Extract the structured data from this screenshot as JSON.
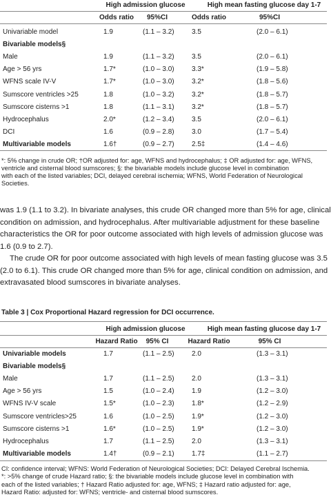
{
  "table2": {
    "group_headers": [
      "High admission glucose",
      "High mean fasting glucose day 1-7"
    ],
    "sub_headers": [
      "Odds ratio",
      "95%CI",
      "Odds ratio",
      "95%CI"
    ],
    "rows": [
      [
        "Univariable model",
        "1.9",
        "(1.1 – 3.2)",
        "3.5",
        "(2.0 – 6.1)"
      ],
      [
        "Bivariable models§"
      ],
      [
        "Male",
        "1.9",
        "(1.1 – 3.2)",
        "3.5",
        "(2.0 – 6.1)"
      ],
      [
        "Age > 56 yrs",
        "1.7*",
        "(1.0 – 3.0)",
        "3.3*",
        "(1.9 – 5.8)"
      ],
      [
        "WFNS scale IV-V",
        "1.7*",
        "(1.0 – 3.0)",
        "3.2*",
        "(1.8 – 5.6)"
      ],
      [
        "Sumscore ventricles >25",
        "1.8",
        "(1.0 – 3.2)",
        "3.2*",
        "(1.8 – 5.7)"
      ],
      [
        "Sumscore cisterns >1",
        "1.8",
        "(1.1 – 3.1)",
        "3.2*",
        "(1.8 – 5.7)"
      ],
      [
        "Hydrocephalus",
        "2.0*",
        "(1.2 – 3.4)",
        "3.5",
        "(2.0 – 6.1)"
      ],
      [
        "DCI",
        "1.6",
        "(0.9 – 2.8)",
        "3.0",
        "(1.7 – 5.4)"
      ],
      [
        "Multivariable models",
        "1.6†",
        "(0.9 – 2.7)",
        "2.5‡",
        "(1.4 – 4.6)"
      ]
    ],
    "footnote": [
      "*: 5% change in crude OR; †OR adjusted for: age, WFNS and hydrocephalus; ‡ OR adjusted for: age, WFNS,",
      "ventricle and cisternal blood sumscores; §: the bivariable models include glucose level in combination",
      "with each of the listed variables; DCI, delayed cerebral ischemia; WFNS, World Federation of Neurological",
      "Societies."
    ]
  },
  "body": [
    "was 1.9 (1.1 to 3.2). In bivariate analyses, this crude OR changed more than 5% for age, clinical",
    "condition on admission, and hydrocephalus. After multivariable adjustment for these baseline",
    "characteristics the OR for poor outcome associated with high levels of admission glucose was",
    "1.6 (0.9 to 2.7).",
    "The crude OR for poor outcome associated with high levels of mean fasting glucose was 3.5",
    "(2.0 to 6.1). This crude OR changed more than 5% for age, clinical condition on admission, and",
    "extravasated blood sumscores in bivariate analyses."
  ],
  "table3": {
    "title": "Table 3 | Cox Proportional Hazard regression for DCI occurrence.",
    "group_headers": [
      "High admission glucose",
      "High mean fasting glucose  day 1-7"
    ],
    "sub_headers": [
      "Hazard Ratio",
      "95% CI",
      "Hazard Ratio",
      "95% CI"
    ],
    "rows": [
      [
        "Univariable models",
        "1.7",
        "(1.1 – 2.5)",
        "2.0",
        "(1.3 – 3.1)"
      ],
      [
        "Bivariable models§"
      ],
      [
        "Male",
        "1.7",
        "(1.1 – 2.5)",
        "2.0",
        "(1.3 – 3.1)"
      ],
      [
        "Age > 56 yrs",
        "1.5",
        "(1.0 – 2.4)",
        "1.9",
        "(1.2 – 3.0)"
      ],
      [
        "WFNS IV-V scale",
        "1.5*",
        "(1.0 – 2.3)",
        "1.8*",
        "(1.2 – 2.9)"
      ],
      [
        "Sumscore ventricles>25",
        "1.6",
        "(1.0 – 2.5)",
        "1.9*",
        "(1.2 – 3.0)"
      ],
      [
        "Sumscore cisterns >1",
        "1.6*",
        "(1.0 – 2.5)",
        "1.9*",
        "(1.2 – 3.0)"
      ],
      [
        "Hydrocephalus",
        "1.7",
        "(1.1 – 2.5)",
        "2.0",
        "(1.3 – 3.1)"
      ],
      [
        "Multivariable models",
        "1.4†",
        "(0.9 – 2.1)",
        "1.7‡",
        "(1.1 – 2.7)"
      ]
    ],
    "footnote": [
      "CI: confidence interval; WFNS: World Federation of Neurological Societies; DCI: Delayed Cerebral Ischemia.",
      "*: >5% change of crude Hazard ratio; §: the bivariable models include glucose level in combination with",
      "each of the listed variables; † Hazard Ratio adjusted for: age, WFNS; ‡ Hazard ratio adjusted for: age,",
      "Hazard Ratio: adjusted for: WFNS; ventricle- and cisternal blood sumscores."
    ]
  }
}
